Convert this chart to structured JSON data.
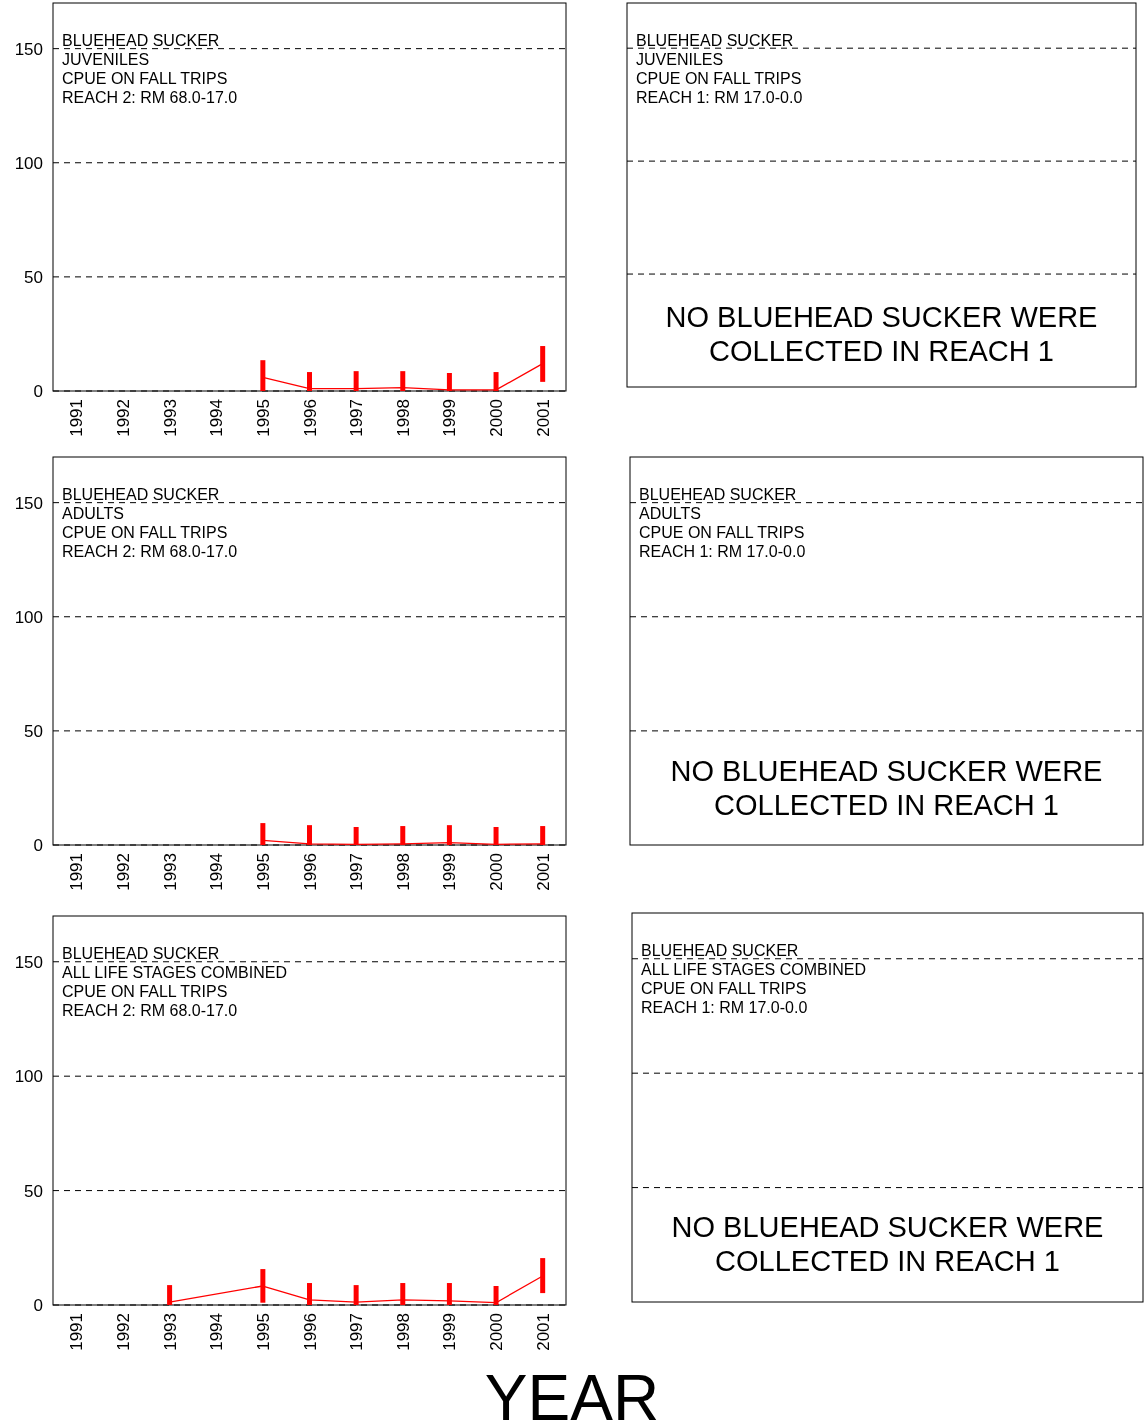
{
  "chart_data": [
    {
      "type": "line",
      "title": "BLUEHEAD SUCKER",
      "subtitle": "JUVENILES",
      "annotations": [
        "CPUE ON FALL TRIPS",
        "REACH 2:  RM 68.0-17.0"
      ],
      "categories": [
        "1991",
        "1992",
        "1993",
        "1994",
        "1995",
        "1996",
        "1997",
        "1998",
        "1999",
        "2000",
        "2001"
      ],
      "series": [
        {
          "color": "#ff0000",
          "values": [
            null,
            null,
            null,
            null,
            6,
            1,
            1,
            1.5,
            0.5,
            0.5,
            12
          ],
          "errors": [
            null,
            null,
            null,
            null,
            [
              0,
              13.5
            ],
            [
              0,
              8.3
            ],
            [
              0,
              8.7
            ],
            [
              0,
              8.7
            ],
            [
              0,
              7.9
            ],
            [
              0,
              8.3
            ],
            [
              4,
              19.7
            ]
          ]
        }
      ],
      "ylim": [
        0,
        170
      ],
      "yticks": [
        0,
        50,
        100,
        150
      ],
      "grid": "y"
    },
    {
      "type": "other",
      "title": "BLUEHEAD SUCKER",
      "subtitle": "JUVENILES",
      "annotations": [
        "CPUE ON FALL TRIPS",
        "REACH 1:  RM 17.0-0.0",
        "NO BLUEHEAD SUCKER WERE COLLECTED IN REACH 1"
      ]
    },
    {
      "type": "line",
      "title": "BLUEHEAD SUCKER",
      "subtitle": "ADULTS",
      "annotations": [
        "CPUE ON FALL TRIPS",
        "REACH 2:  RM 68.0-17.0"
      ],
      "categories": [
        "1991",
        "1992",
        "1993",
        "1994",
        "1995",
        "1996",
        "1997",
        "1998",
        "1999",
        "2000",
        "2001"
      ],
      "series": [
        {
          "color": "#ff0000",
          "values": [
            null,
            null,
            null,
            null,
            2,
            0.5,
            0.3,
            0.5,
            1,
            0.3,
            0.5
          ],
          "errors": [
            null,
            null,
            null,
            null,
            [
              0,
              9.6
            ],
            [
              0,
              8.7
            ],
            [
              0,
              7.9
            ],
            [
              0,
              8.3
            ],
            [
              0,
              8.7
            ],
            [
              0,
              7.9
            ],
            [
              0,
              8.3
            ]
          ]
        }
      ],
      "ylim": [
        0,
        170
      ],
      "yticks": [
        0,
        50,
        100,
        150
      ],
      "grid": "y"
    },
    {
      "type": "other",
      "title": "BLUEHEAD SUCKER",
      "subtitle": "ADULTS",
      "annotations": [
        "CPUE ON FALL TRIPS",
        "REACH 1:  RM 17.0-0.0",
        "NO BLUEHEAD SUCKER WERE COLLECTED IN REACH 1"
      ]
    },
    {
      "type": "line",
      "title": "BLUEHEAD SUCKER",
      "subtitle": "ALL LIFE STAGES COMBINED",
      "annotations": [
        "CPUE ON FALL TRIPS",
        "REACH 2:  RM 68.0-17.0"
      ],
      "xlabel": "YEAR",
      "categories": [
        "1991",
        "1992",
        "1993",
        "1994",
        "1995",
        "1996",
        "1997",
        "1998",
        "1999",
        "2000",
        "2001"
      ],
      "series": [
        {
          "color": "#ff0000",
          "values": [
            null,
            null,
            1.3,
            null,
            8.3,
            2.2,
            1.3,
            2.2,
            1.8,
            1,
            12.7
          ],
          "errors": [
            null,
            null,
            [
              0,
              8.7
            ],
            null,
            [
              1,
              15.7
            ],
            [
              0,
              9.6
            ],
            [
              0,
              8.7
            ],
            [
              0,
              9.6
            ],
            [
              0,
              9.6
            ],
            [
              0,
              8.3
            ],
            [
              5.2,
              20.5
            ]
          ]
        }
      ],
      "ylim": [
        0,
        170
      ],
      "yticks": [
        0,
        50,
        100,
        150
      ],
      "grid": "y"
    },
    {
      "type": "other",
      "title": "BLUEHEAD SUCKER",
      "subtitle": "ALL LIFE STAGES COMBINED",
      "annotations": [
        "CPUE ON FALL TRIPS",
        "REACH 1:  RM 17.0-0.0",
        "NO BLUEHEAD SUCKER WERE COLLECTED IN REACH 1"
      ]
    }
  ]
}
